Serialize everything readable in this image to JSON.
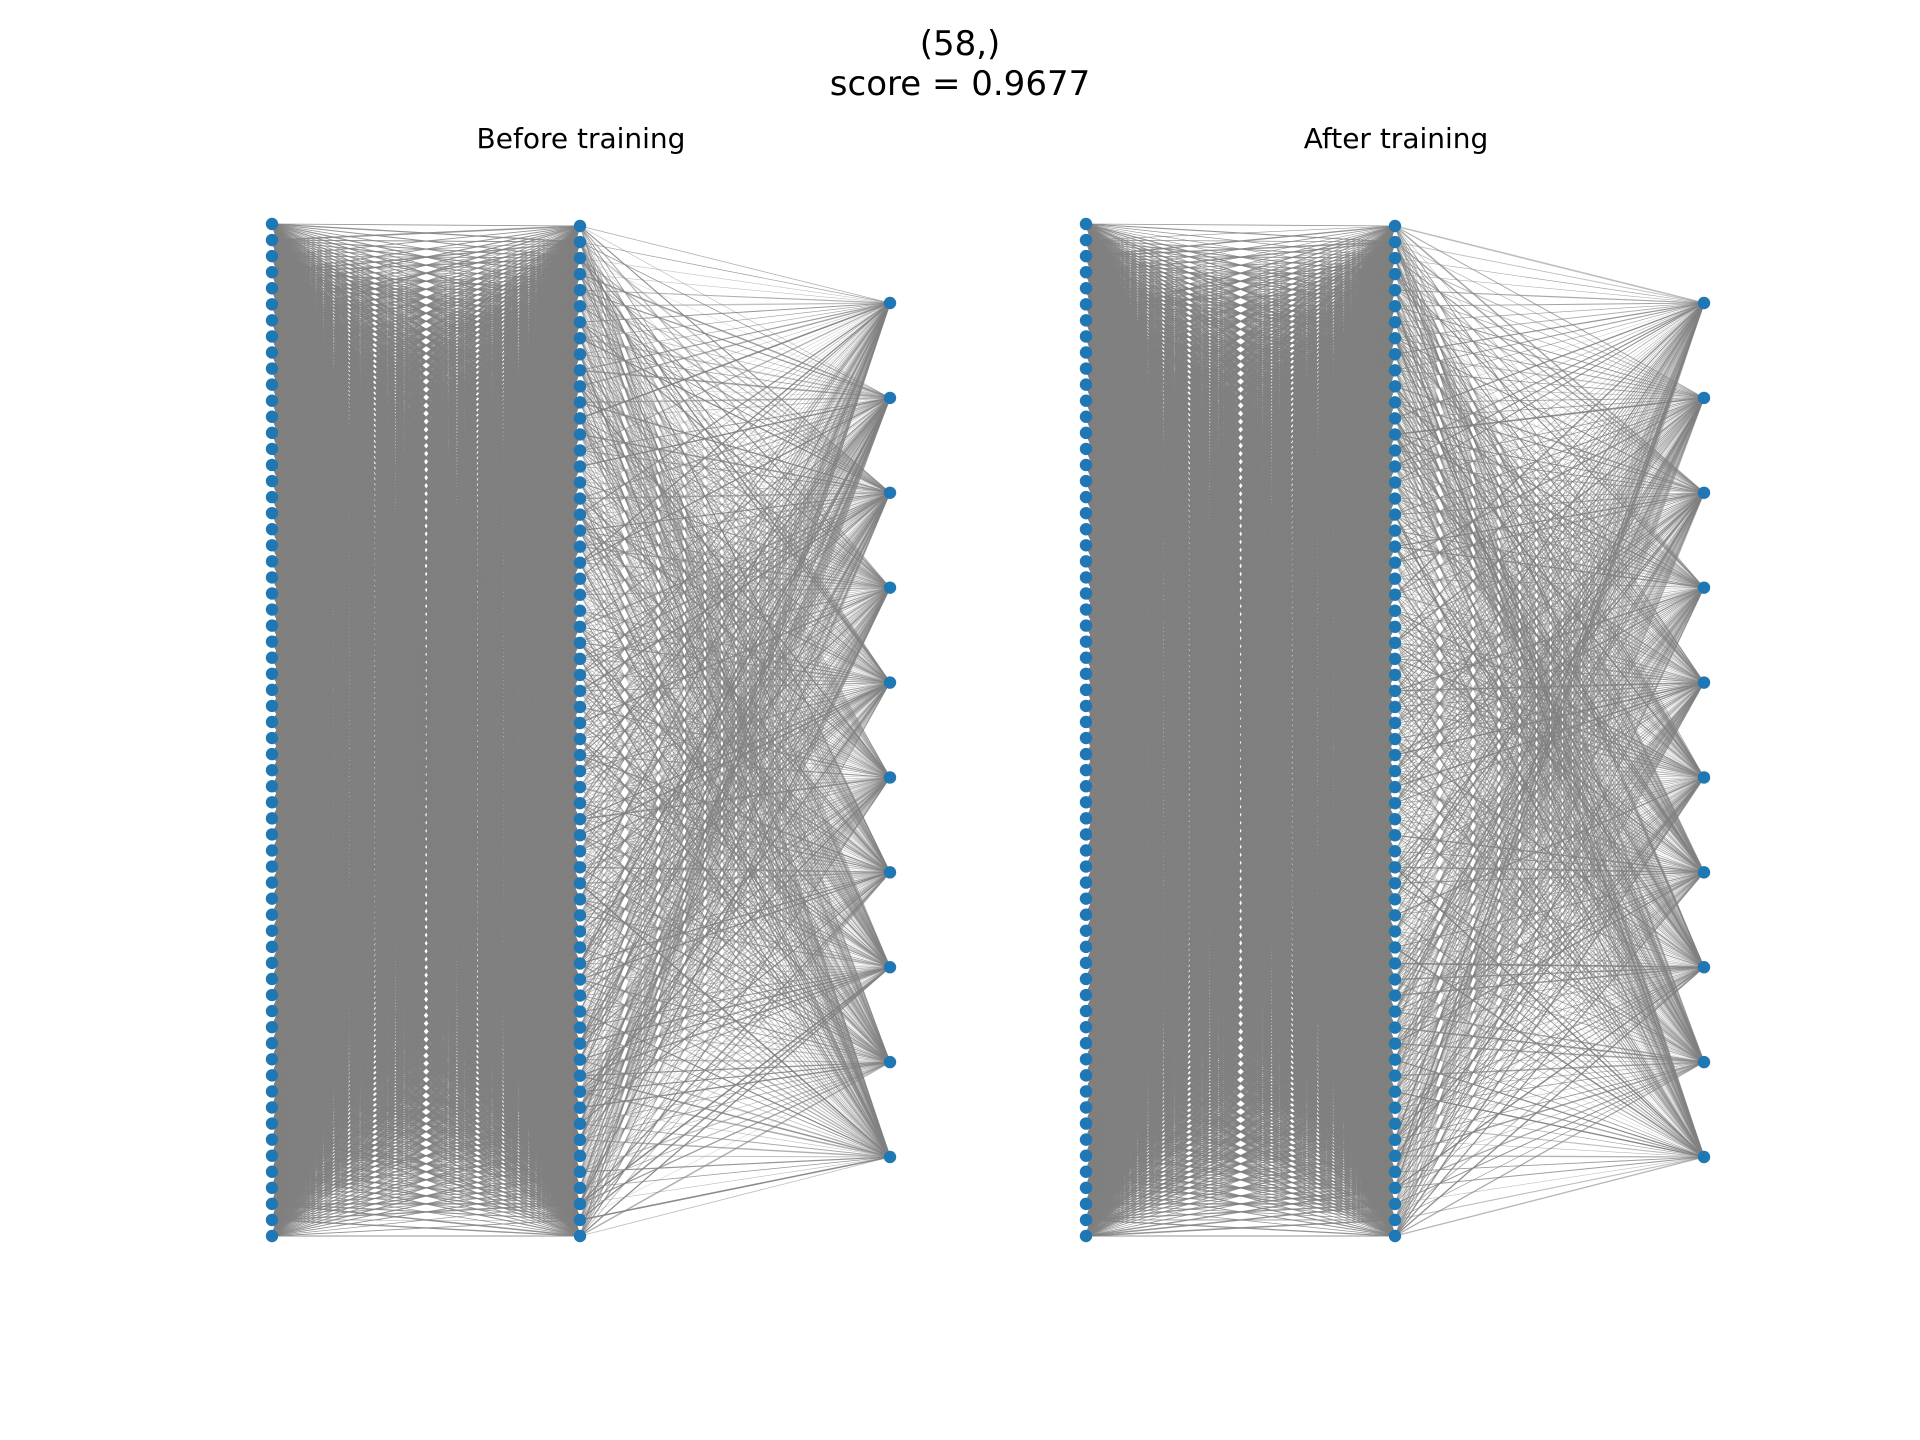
{
  "figure": {
    "title_line1": "(58,)",
    "title_line2": "score = 0.9677"
  },
  "panels": [
    {
      "id": "before",
      "title": "Before training"
    },
    {
      "id": "after",
      "title": "After training"
    }
  ],
  "network": {
    "layer_sizes": [
      64,
      64,
      10
    ],
    "edge_color": "#808080",
    "node_color": "#1f77b4"
  }
}
